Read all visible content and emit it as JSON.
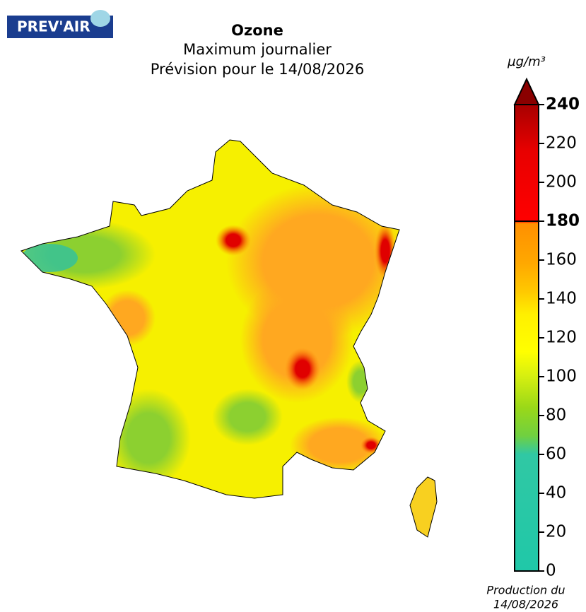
{
  "header": {
    "logo": "PREV'AIR",
    "title": "Ozone",
    "subtitle": "Maximum journalier",
    "forecast": "Prévision pour le 14/08/2026"
  },
  "colorbar": {
    "unit": "µg/m³",
    "lim": [
      0,
      240
    ],
    "ticks": [
      0,
      20,
      40,
      60,
      80,
      100,
      120,
      140,
      160,
      180,
      200,
      220,
      240
    ],
    "emphasized_ticks": [
      180,
      240
    ]
  },
  "footer": {
    "line1": "Production du",
    "line2": "14/08/2026"
  }
}
